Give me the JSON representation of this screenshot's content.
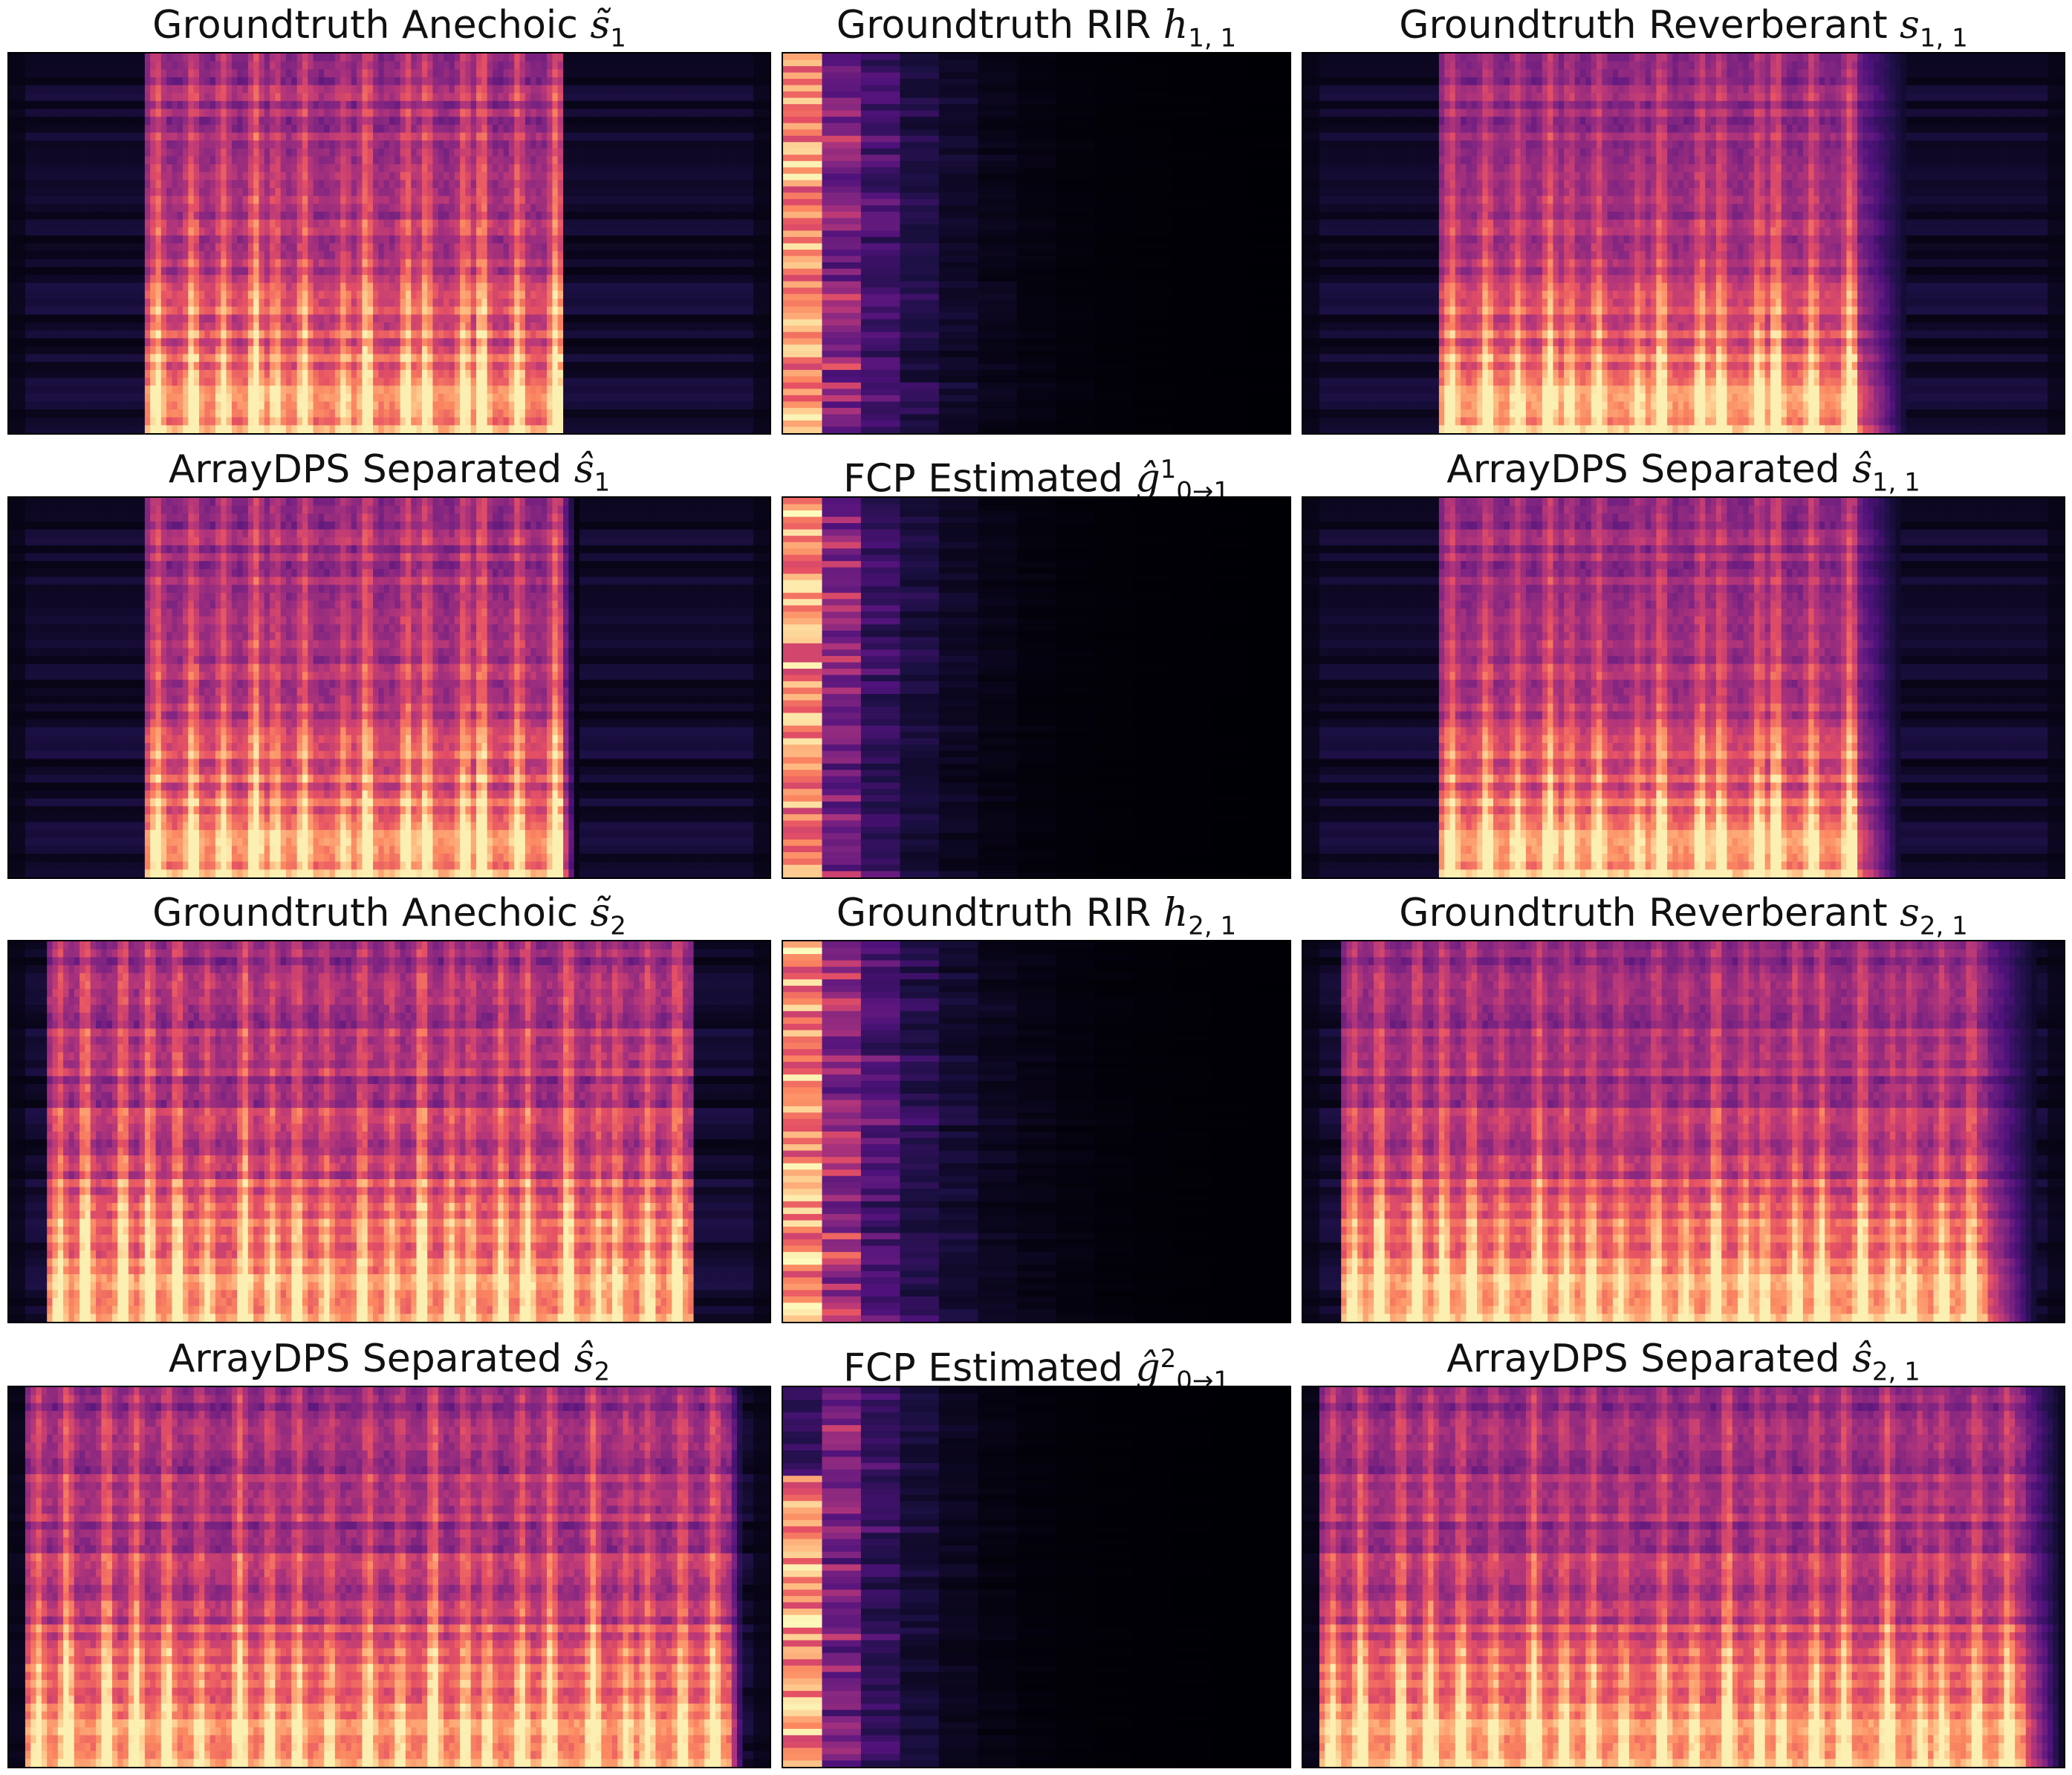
{
  "colormap": [
    "#000004",
    "#1c1044",
    "#4f127b",
    "#812581",
    "#b5367a",
    "#e55064",
    "#fb8761",
    "#fec287",
    "#fcfdbf"
  ],
  "panels": [
    {
      "title_prefix": "Groundtruth Anechoic ",
      "sym": "s",
      "accent": "~",
      "sub": "1",
      "sup": "",
      "kind": "speech",
      "speech_start": 0.18,
      "speech_end": 0.73,
      "reverb": 0.0,
      "vowel_count": 14,
      "seed": 11
    },
    {
      "title_prefix": "Groundtruth RIR ",
      "sym": "h",
      "accent": "",
      "sub": "1, 1",
      "sup": "",
      "kind": "rir",
      "decay": 0.55,
      "seed": 21
    },
    {
      "title_prefix": "Groundtruth Reverberant ",
      "sym": "s",
      "accent": "",
      "sub": "1, 1",
      "sup": "",
      "kind": "speech",
      "speech_start": 0.18,
      "speech_end": 0.73,
      "reverb": 0.8,
      "vowel_count": 14,
      "seed": 11
    },
    {
      "title_prefix": "ArrayDPS Separated ",
      "sym": "s",
      "accent": "^",
      "sub": "1",
      "sup": "",
      "kind": "speech",
      "speech_start": 0.18,
      "speech_end": 0.73,
      "reverb": 0.2,
      "vowel_count": 14,
      "seed": 11
    },
    {
      "title_prefix": "FCP Estimated ",
      "sym": "g",
      "accent": "^",
      "sub": "0→1",
      "sup": "1",
      "kind": "rir",
      "decay": 0.6,
      "seed": 33
    },
    {
      "title_prefix": "ArrayDPS Separated ",
      "sym": "s",
      "accent": "^",
      "sub": "1, 1",
      "sup": "",
      "kind": "speech",
      "speech_start": 0.18,
      "speech_end": 0.73,
      "reverb": 0.7,
      "vowel_count": 14,
      "seed": 11
    },
    {
      "title_prefix": "Groundtruth Anechoic ",
      "sym": "s",
      "accent": "~",
      "sub": "2",
      "sup": "",
      "kind": "speech",
      "speech_start": 0.05,
      "speech_end": 0.9,
      "reverb": 0.0,
      "vowel_count": 22,
      "seed": 47
    },
    {
      "title_prefix": "Groundtruth RIR ",
      "sym": "h",
      "accent": "",
      "sub": "2, 1",
      "sup": "",
      "kind": "rir",
      "decay": 0.5,
      "seed": 55
    },
    {
      "title_prefix": "Groundtruth Reverberant ",
      "sym": "s",
      "accent": "",
      "sub": "2, 1",
      "sup": "",
      "kind": "speech",
      "speech_start": 0.05,
      "speech_end": 0.9,
      "reverb": 0.8,
      "vowel_count": 22,
      "seed": 47
    },
    {
      "title_prefix": "ArrayDPS Separated ",
      "sym": "s",
      "accent": "^",
      "sub": "2",
      "sup": "",
      "kind": "speech",
      "speech_start": 0.02,
      "speech_end": 0.95,
      "reverb": 0.2,
      "vowel_count": 22,
      "seed": 47
    },
    {
      "title_prefix": "FCP Estimated ",
      "sym": "g",
      "accent": "^",
      "sub": "0→1",
      "sup": "2",
      "kind": "rir",
      "decay": 0.65,
      "seed": 71
    },
    {
      "title_prefix": "ArrayDPS Separated ",
      "sym": "s",
      "accent": "^",
      "sub": "2, 1",
      "sup": "",
      "kind": "speech",
      "speech_start": 0.02,
      "speech_end": 0.95,
      "reverb": 0.6,
      "vowel_count": 22,
      "seed": 47
    }
  ]
}
